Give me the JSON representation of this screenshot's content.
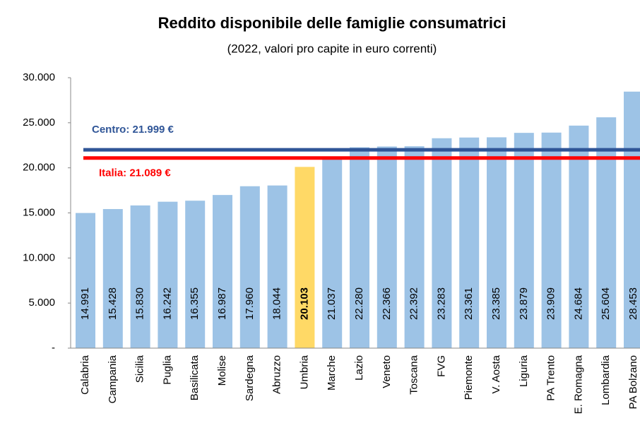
{
  "chart_data": {
    "type": "bar",
    "title": "Reddito disponibile  delle famiglie consumatrici",
    "subtitle": "(2022, valori pro capite in euro correnti)",
    "categories": [
      "Calabria",
      "Campania",
      "Sicilia",
      "Puglia",
      "Basilicata",
      "Molise",
      "Sardegna",
      "Abruzzo",
      "Umbria",
      "Marche",
      "Lazio",
      "Veneto",
      "Toscana",
      "FVG",
      "Piemonte",
      "V. Aosta",
      "Liguria",
      "PA Trento",
      "E. Romagna",
      "Lombardia",
      "PA Bolzano"
    ],
    "values": [
      14991,
      15428,
      15830,
      16242,
      16355,
      16987,
      17960,
      18044,
      20103,
      21037,
      22280,
      22366,
      22392,
      23283,
      23361,
      23385,
      23879,
      23909,
      24684,
      25604,
      28453
    ],
    "value_labels": [
      "14.991",
      "15.428",
      "15.830",
      "16.242",
      "16.355",
      "16.987",
      "17.960",
      "18.044",
      "20.103",
      "21.037",
      "22.280",
      "22.366",
      "22.392",
      "23.283",
      "23.361",
      "23.385",
      "23.879",
      "23.909",
      "24.684",
      "25.604",
      "28.453"
    ],
    "colors": [
      "#9dc3e6",
      "#9dc3e6",
      "#9dc3e6",
      "#9dc3e6",
      "#9dc3e6",
      "#9dc3e6",
      "#9dc3e6",
      "#9dc3e6",
      "#ffd966",
      "#9dc3e6",
      "#9dc3e6",
      "#9dc3e6",
      "#9dc3e6",
      "#9dc3e6",
      "#9dc3e6",
      "#9dc3e6",
      "#9dc3e6",
      "#9dc3e6",
      "#9dc3e6",
      "#9dc3e6",
      "#9dc3e6"
    ],
    "ylim": [
      0,
      30000
    ],
    "yticks": [
      {
        "value": 0,
        "label": "-"
      },
      {
        "value": 5000,
        "label": "5.000"
      },
      {
        "value": 10000,
        "label": "10.000"
      },
      {
        "value": 15000,
        "label": "15.000"
      },
      {
        "value": 20000,
        "label": "20.000"
      },
      {
        "value": 25000,
        "label": "25.000"
      },
      {
        "value": 30000,
        "label": "30.000"
      }
    ],
    "reference_lines": [
      {
        "label": "Centro: 21.999 €",
        "value": 21999,
        "color": "#2f5597"
      },
      {
        "label": "Italia: 21.089 €",
        "value": 21089,
        "color": "#ff0000"
      }
    ]
  }
}
